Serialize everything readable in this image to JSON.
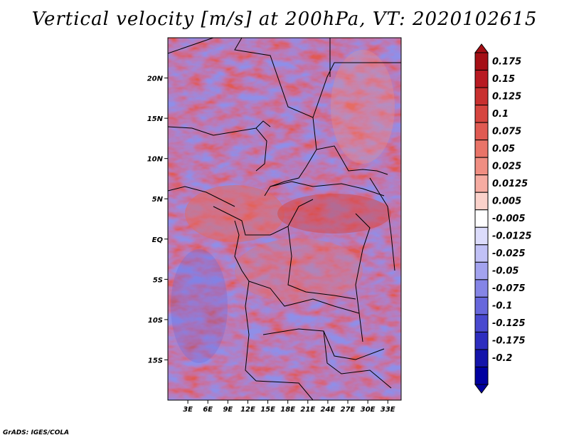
{
  "title": "Vertical velocity [m/s] at 200hPa, VT: 2020102615",
  "credit": "GrADS: IGES/COLA",
  "map": {
    "lon_range": [
      0,
      35
    ],
    "lat_range": [
      -20,
      25
    ],
    "lat_labels": [
      {
        "lat": 20,
        "text": "20N"
      },
      {
        "lat": 15,
        "text": "15N"
      },
      {
        "lat": 10,
        "text": "10N"
      },
      {
        "lat": 5,
        "text": "5N"
      },
      {
        "lat": 0,
        "text": "EQ"
      },
      {
        "lat": -5,
        "text": "5S"
      },
      {
        "lat": -10,
        "text": "10S"
      },
      {
        "lat": -15,
        "text": "15S"
      }
    ],
    "lon_labels": [
      {
        "lon": 3,
        "text": "3E"
      },
      {
        "lon": 6,
        "text": "6E"
      },
      {
        "lon": 9,
        "text": "9E"
      },
      {
        "lon": 12,
        "text": "12E"
      },
      {
        "lon": 15,
        "text": "15E"
      },
      {
        "lon": 18,
        "text": "18E"
      },
      {
        "lon": 21,
        "text": "21E"
      },
      {
        "lon": 24,
        "text": "24E"
      },
      {
        "lon": 27,
        "text": "27E"
      },
      {
        "lon": 30,
        "text": "30E"
      },
      {
        "lon": 33,
        "text": "33E"
      }
    ]
  },
  "colorbar": {
    "labels": [
      "0.175",
      "0.15",
      "0.125",
      "0.1",
      "0.075",
      "0.05",
      "0.025",
      "0.0125",
      "0.005",
      "-0.005",
      "-0.0125",
      "-0.025",
      "-0.05",
      "-0.075",
      "-0.1",
      "-0.125",
      "-0.175",
      "-0.2"
    ],
    "colors": [
      "#a50f15",
      "#b81a22",
      "#c8302f",
      "#d6453f",
      "#e05a52",
      "#e97468",
      "#f08e82",
      "#f6aca2",
      "#fbd2cb",
      "#ffffff",
      "#dcdcfb",
      "#c1c1f6",
      "#a3a3ef",
      "#8585e6",
      "#6767dc",
      "#4949cf",
      "#2d2dbf",
      "#1414aa",
      "#0000a0"
    ]
  }
}
